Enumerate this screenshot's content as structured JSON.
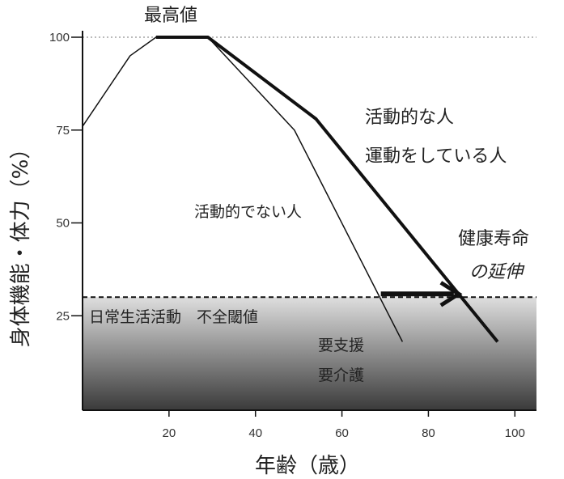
{
  "chart_data": {
    "type": "line",
    "xlabel": "年齢（歳）",
    "ylabel": "身体機能・体力（%）",
    "xlim": [
      0,
      105
    ],
    "ylim": [
      0,
      105
    ],
    "xticks": [
      20,
      40,
      60,
      80,
      100
    ],
    "yticks": [
      25,
      50,
      75,
      100
    ],
    "grid": false,
    "reference_line_100": {
      "y": 100,
      "style": "dotted",
      "color": "#bbbbbb"
    },
    "threshold": {
      "y": 30,
      "label": "日常生活活動　不全閾値",
      "style": "dashed"
    },
    "shaded_region": {
      "y_max": 30,
      "label_lines": [
        "要支援",
        "要介護"
      ],
      "gradient": [
        "#dedede",
        "#3a3a3a"
      ]
    },
    "series": [
      {
        "name": "活動的でない人",
        "width": "thin",
        "x": [
          0,
          11,
          17,
          29,
          49,
          74
        ],
        "y": [
          76,
          95,
          100,
          100,
          75,
          18
        ]
      },
      {
        "name_lines": [
          "活動的な人",
          "運動をしている人"
        ],
        "width": "thick",
        "x": [
          17,
          29,
          54,
          96
        ],
        "y": [
          100,
          100,
          78,
          18
        ]
      }
    ],
    "annotations": {
      "peak": "最高値",
      "extension_lines": [
        "健康寿命",
        "の延伸"
      ],
      "arrow": {
        "from_x": 69,
        "to_x": 87,
        "y": 30
      }
    }
  }
}
